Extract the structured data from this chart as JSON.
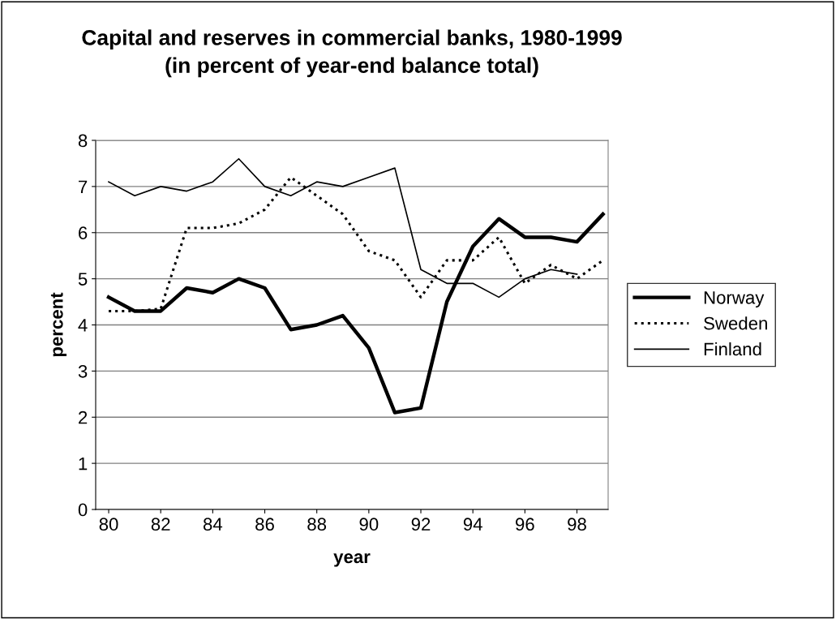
{
  "chart_data": {
    "type": "line",
    "title": "Capital and reserves in commercial banks, 1980-1999\n(in percent of year-end balance total)",
    "xlabel": "year",
    "ylabel": "percent",
    "x": [
      80,
      81,
      82,
      83,
      84,
      85,
      86,
      87,
      88,
      89,
      90,
      91,
      92,
      93,
      94,
      95,
      96,
      97,
      98,
      99
    ],
    "xlim": [
      79.5,
      99.2
    ],
    "xticks": [
      80,
      82,
      84,
      86,
      88,
      90,
      92,
      94,
      96,
      98
    ],
    "ylim": [
      0,
      8
    ],
    "yticks": [
      0,
      1,
      2,
      3,
      4,
      5,
      6,
      7,
      8
    ],
    "grid": "y",
    "legend": "right",
    "marker": "none",
    "series": [
      {
        "name": "Norway",
        "color": "#000000",
        "line_style": "solid",
        "values": [
          4.6,
          4.3,
          4.3,
          4.8,
          4.7,
          5.0,
          4.8,
          3.9,
          4.0,
          4.2,
          3.5,
          2.1,
          2.2,
          4.5,
          5.7,
          6.3,
          5.9,
          5.9,
          5.8,
          6.4
        ]
      },
      {
        "name": "Sweden",
        "color": "#000000",
        "line_style": "dotted",
        "values": [
          4.3,
          4.3,
          4.35,
          6.1,
          6.1,
          6.2,
          6.5,
          7.2,
          6.8,
          6.4,
          5.6,
          5.4,
          4.6,
          5.4,
          5.4,
          5.9,
          4.9,
          5.3,
          5.0,
          5.4
        ]
      },
      {
        "name": "Finland",
        "color": "#000000",
        "line_style": "solid",
        "values": [
          7.1,
          6.8,
          7.0,
          6.9,
          7.1,
          7.6,
          7.0,
          6.8,
          7.1,
          7.0,
          7.2,
          7.4,
          5.2,
          4.9,
          4.9,
          4.6,
          5.0,
          5.2,
          5.1,
          null
        ]
      }
    ]
  }
}
